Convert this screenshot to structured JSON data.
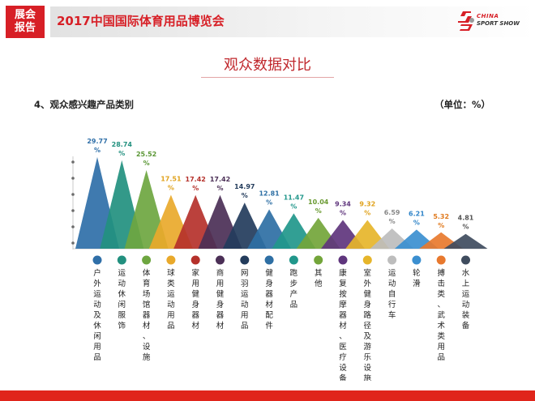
{
  "header": {
    "badge_line1": "展会",
    "badge_line2": "报告",
    "title": "2017中国国际体育用品博览会",
    "logo_line1": "CHINA",
    "logo_line2": "SPORT SHOW"
  },
  "page": {
    "title": "观众数据对比",
    "subtitle": "4、观众感兴趣产品类别",
    "unit": "（单位：%）"
  },
  "chart_data": {
    "type": "bar",
    "categories": [
      "户外运动及休闲用品",
      "运动休闲服饰",
      "体育场馆器材、设施",
      "球类运动用品",
      "家用健身器材",
      "商用健身器材",
      "网羽运动用品",
      "健身器材配件",
      "跑步产品",
      "其他",
      "康复按摩器材、医疗设备",
      "室外健身路径及游乐设施",
      "运动自行车",
      "轮滑",
      "搏击类、武术类用品",
      "水上运动装备"
    ],
    "values": [
      29.77,
      28.74,
      25.52,
      17.51,
      17.42,
      17.42,
      14.97,
      12.81,
      11.47,
      10.04,
      9.34,
      9.32,
      6.59,
      6.21,
      5.32,
      4.81
    ],
    "value_labels": [
      "29.77",
      "28.74",
      "25.52",
      "17.51",
      "17.42",
      "17.42",
      "14.97",
      "12.81",
      "11.47",
      "10.04",
      "9.34",
      "9.32",
      "6.59",
      "6.21",
      "5.32",
      "4.81"
    ],
    "unit_symbol": "%",
    "colors": [
      "#2f6fa8",
      "#22907f",
      "#6ea640",
      "#e9a92b",
      "#b5312b",
      "#4b2f56",
      "#233c5c",
      "#2e6fa4",
      "#21978b",
      "#73a53a",
      "#5f357d",
      "#e6b52a",
      "#bdbdbd",
      "#3b8fd0",
      "#e8792e",
      "#3f4c5e"
    ],
    "label_colors": [
      "#2f6fa8",
      "#22907f",
      "#5a9634",
      "#e0a21c",
      "#b5312b",
      "#4b2f56",
      "#233c5c",
      "#2e6fa4",
      "#21978b",
      "#6b9b33",
      "#5f357d",
      "#e0a21c",
      "#888888",
      "#2f84c8",
      "#e0791c",
      "#555555"
    ],
    "ylim": [
      0,
      30
    ],
    "grid": false,
    "legend": "none"
  }
}
